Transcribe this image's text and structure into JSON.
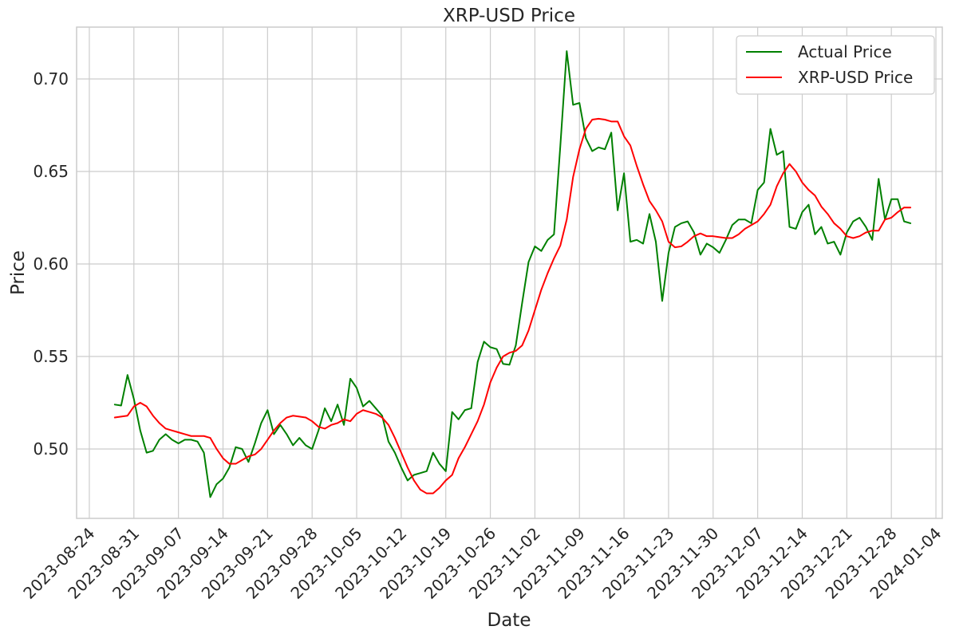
{
  "chart_data": {
    "type": "line",
    "title": "XRP-USD Price",
    "xlabel": "Date",
    "ylabel": "Price",
    "grid": true,
    "legend_position": "top-right",
    "x_start": "2023-08-22",
    "x_end": "2024-01-05",
    "ylim": [
      0.4625,
      0.728
    ],
    "x_ticks": [
      "2023-08-24",
      "2023-08-31",
      "2023-09-07",
      "2023-09-14",
      "2023-09-21",
      "2023-09-28",
      "2023-10-05",
      "2023-10-12",
      "2023-10-19",
      "2023-10-26",
      "2023-11-02",
      "2023-11-09",
      "2023-11-16",
      "2023-11-23",
      "2023-11-30",
      "2023-12-07",
      "2023-12-14",
      "2023-12-21",
      "2023-12-28",
      "2024-01-04"
    ],
    "y_ticks": [
      0.5,
      0.55,
      0.6,
      0.65,
      0.7
    ],
    "y_tick_labels": [
      "0.50",
      "0.55",
      "0.60",
      "0.65",
      "0.70"
    ],
    "series": [
      {
        "name": "Actual Price",
        "color": "#008000",
        "points": [
          [
            "2023-08-28",
            0.524
          ],
          [
            "2023-08-29",
            0.5235
          ],
          [
            "2023-08-30",
            0.54
          ],
          [
            "2023-08-31",
            0.527
          ],
          [
            "2023-09-01",
            0.51
          ],
          [
            "2023-09-02",
            0.498
          ],
          [
            "2023-09-03",
            0.499
          ],
          [
            "2023-09-04",
            0.505
          ],
          [
            "2023-09-05",
            0.508
          ],
          [
            "2023-09-06",
            0.505
          ],
          [
            "2023-09-07",
            0.503
          ],
          [
            "2023-09-08",
            0.505
          ],
          [
            "2023-09-09",
            0.505
          ],
          [
            "2023-09-10",
            0.504
          ],
          [
            "2023-09-11",
            0.498
          ],
          [
            "2023-09-12",
            0.474
          ],
          [
            "2023-09-13",
            0.481
          ],
          [
            "2023-09-14",
            0.484
          ],
          [
            "2023-09-15",
            0.49
          ],
          [
            "2023-09-16",
            0.501
          ],
          [
            "2023-09-17",
            0.5
          ],
          [
            "2023-09-18",
            0.493
          ],
          [
            "2023-09-19",
            0.503
          ],
          [
            "2023-09-20",
            0.514
          ],
          [
            "2023-09-21",
            0.521
          ],
          [
            "2023-09-22",
            0.508
          ],
          [
            "2023-09-23",
            0.513
          ],
          [
            "2023-09-24",
            0.508
          ],
          [
            "2023-09-25",
            0.502
          ],
          [
            "2023-09-26",
            0.506
          ],
          [
            "2023-09-27",
            0.502
          ],
          [
            "2023-09-28",
            0.5
          ],
          [
            "2023-09-29",
            0.51
          ],
          [
            "2023-09-30",
            0.522
          ],
          [
            "2023-10-01",
            0.515
          ],
          [
            "2023-10-02",
            0.524
          ],
          [
            "2023-10-03",
            0.513
          ],
          [
            "2023-10-04",
            0.538
          ],
          [
            "2023-10-05",
            0.533
          ],
          [
            "2023-10-06",
            0.523
          ],
          [
            "2023-10-07",
            0.526
          ],
          [
            "2023-10-08",
            0.522
          ],
          [
            "2023-10-09",
            0.518
          ],
          [
            "2023-10-10",
            0.504
          ],
          [
            "2023-10-11",
            0.498
          ],
          [
            "2023-10-12",
            0.49
          ],
          [
            "2023-10-13",
            0.483
          ],
          [
            "2023-10-14",
            0.486
          ],
          [
            "2023-10-15",
            0.487
          ],
          [
            "2023-10-16",
            0.488
          ],
          [
            "2023-10-17",
            0.498
          ],
          [
            "2023-10-18",
            0.492
          ],
          [
            "2023-10-19",
            0.488
          ],
          [
            "2023-10-20",
            0.52
          ],
          [
            "2023-10-21",
            0.516
          ],
          [
            "2023-10-22",
            0.521
          ],
          [
            "2023-10-23",
            0.522
          ],
          [
            "2023-10-24",
            0.547
          ],
          [
            "2023-10-25",
            0.558
          ],
          [
            "2023-10-26",
            0.555
          ],
          [
            "2023-10-27",
            0.554
          ],
          [
            "2023-10-28",
            0.546
          ],
          [
            "2023-10-29",
            0.5455
          ],
          [
            "2023-10-30",
            0.556
          ],
          [
            "2023-10-31",
            0.579
          ],
          [
            "2023-11-01",
            0.601
          ],
          [
            "2023-11-02",
            0.6095
          ],
          [
            "2023-11-03",
            0.607
          ],
          [
            "2023-11-04",
            0.613
          ],
          [
            "2023-11-05",
            0.616
          ],
          [
            "2023-11-06",
            0.664
          ],
          [
            "2023-11-07",
            0.715
          ],
          [
            "2023-11-08",
            0.686
          ],
          [
            "2023-11-09",
            0.687
          ],
          [
            "2023-11-10",
            0.668
          ],
          [
            "2023-11-11",
            0.661
          ],
          [
            "2023-11-12",
            0.663
          ],
          [
            "2023-11-13",
            0.662
          ],
          [
            "2023-11-14",
            0.671
          ],
          [
            "2023-11-15",
            0.629
          ],
          [
            "2023-11-16",
            0.649
          ],
          [
            "2023-11-17",
            0.612
          ],
          [
            "2023-11-18",
            0.613
          ],
          [
            "2023-11-19",
            0.611
          ],
          [
            "2023-11-20",
            0.627
          ],
          [
            "2023-11-21",
            0.612
          ],
          [
            "2023-11-22",
            0.58
          ],
          [
            "2023-11-23",
            0.606
          ],
          [
            "2023-11-24",
            0.62
          ],
          [
            "2023-11-25",
            0.622
          ],
          [
            "2023-11-26",
            0.623
          ],
          [
            "2023-11-27",
            0.617
          ],
          [
            "2023-11-28",
            0.605
          ],
          [
            "2023-11-29",
            0.611
          ],
          [
            "2023-11-30",
            0.609
          ],
          [
            "2023-12-01",
            0.606
          ],
          [
            "2023-12-02",
            0.613
          ],
          [
            "2023-12-03",
            0.621
          ],
          [
            "2023-12-04",
            0.624
          ],
          [
            "2023-12-05",
            0.624
          ],
          [
            "2023-12-06",
            0.622
          ],
          [
            "2023-12-07",
            0.64
          ],
          [
            "2023-12-08",
            0.644
          ],
          [
            "2023-12-09",
            0.673
          ],
          [
            "2023-12-10",
            0.659
          ],
          [
            "2023-12-11",
            0.661
          ],
          [
            "2023-12-12",
            0.62
          ],
          [
            "2023-12-13",
            0.619
          ],
          [
            "2023-12-14",
            0.628
          ],
          [
            "2023-12-15",
            0.632
          ],
          [
            "2023-12-16",
            0.616
          ],
          [
            "2023-12-17",
            0.62
          ],
          [
            "2023-12-18",
            0.611
          ],
          [
            "2023-12-19",
            0.612
          ],
          [
            "2023-12-20",
            0.605
          ],
          [
            "2023-12-21",
            0.617
          ],
          [
            "2023-12-22",
            0.623
          ],
          [
            "2023-12-23",
            0.625
          ],
          [
            "2023-12-24",
            0.62
          ],
          [
            "2023-12-25",
            0.613
          ],
          [
            "2023-12-26",
            0.646
          ],
          [
            "2023-12-27",
            0.624
          ],
          [
            "2023-12-28",
            0.635
          ],
          [
            "2023-12-29",
            0.635
          ],
          [
            "2023-12-30",
            0.623
          ],
          [
            "2023-12-31",
            0.622
          ]
        ]
      },
      {
        "name": "XRP-USD Price",
        "color": "#ff0000",
        "points": [
          [
            "2023-08-28",
            0.517
          ],
          [
            "2023-08-29",
            0.5175
          ],
          [
            "2023-08-30",
            0.518
          ],
          [
            "2023-08-31",
            0.523
          ],
          [
            "2023-09-01",
            0.525
          ],
          [
            "2023-09-02",
            0.523
          ],
          [
            "2023-09-03",
            0.518
          ],
          [
            "2023-09-04",
            0.514
          ],
          [
            "2023-09-05",
            0.511
          ],
          [
            "2023-09-06",
            0.51
          ],
          [
            "2023-09-07",
            0.509
          ],
          [
            "2023-09-08",
            0.508
          ],
          [
            "2023-09-09",
            0.507
          ],
          [
            "2023-09-10",
            0.507
          ],
          [
            "2023-09-11",
            0.507
          ],
          [
            "2023-09-12",
            0.506
          ],
          [
            "2023-09-13",
            0.5
          ],
          [
            "2023-09-14",
            0.495
          ],
          [
            "2023-09-15",
            0.492
          ],
          [
            "2023-09-16",
            0.492
          ],
          [
            "2023-09-17",
            0.494
          ],
          [
            "2023-09-18",
            0.496
          ],
          [
            "2023-09-19",
            0.497
          ],
          [
            "2023-09-20",
            0.5
          ],
          [
            "2023-09-21",
            0.505
          ],
          [
            "2023-09-22",
            0.51
          ],
          [
            "2023-09-23",
            0.514
          ],
          [
            "2023-09-24",
            0.517
          ],
          [
            "2023-09-25",
            0.518
          ],
          [
            "2023-09-26",
            0.5175
          ],
          [
            "2023-09-27",
            0.517
          ],
          [
            "2023-09-28",
            0.515
          ],
          [
            "2023-09-29",
            0.512
          ],
          [
            "2023-09-30",
            0.511
          ],
          [
            "2023-10-01",
            0.513
          ],
          [
            "2023-10-02",
            0.514
          ],
          [
            "2023-10-03",
            0.516
          ],
          [
            "2023-10-04",
            0.515
          ],
          [
            "2023-10-05",
            0.519
          ],
          [
            "2023-10-06",
            0.521
          ],
          [
            "2023-10-07",
            0.52
          ],
          [
            "2023-10-08",
            0.519
          ],
          [
            "2023-10-09",
            0.517
          ],
          [
            "2023-10-10",
            0.513
          ],
          [
            "2023-10-11",
            0.506
          ],
          [
            "2023-10-12",
            0.498
          ],
          [
            "2023-10-13",
            0.49
          ],
          [
            "2023-10-14",
            0.483
          ],
          [
            "2023-10-15",
            0.478
          ],
          [
            "2023-10-16",
            0.476
          ],
          [
            "2023-10-17",
            0.476
          ],
          [
            "2023-10-18",
            0.479
          ],
          [
            "2023-10-19",
            0.483
          ],
          [
            "2023-10-20",
            0.486
          ],
          [
            "2023-10-21",
            0.495
          ],
          [
            "2023-10-22",
            0.501
          ],
          [
            "2023-10-23",
            0.508
          ],
          [
            "2023-10-24",
            0.515
          ],
          [
            "2023-10-25",
            0.524
          ],
          [
            "2023-10-26",
            0.536
          ],
          [
            "2023-10-27",
            0.544
          ],
          [
            "2023-10-28",
            0.55
          ],
          [
            "2023-10-29",
            0.552
          ],
          [
            "2023-10-30",
            0.553
          ],
          [
            "2023-10-31",
            0.556
          ],
          [
            "2023-11-01",
            0.564
          ],
          [
            "2023-11-02",
            0.575
          ],
          [
            "2023-11-03",
            0.586
          ],
          [
            "2023-11-04",
            0.595
          ],
          [
            "2023-11-05",
            0.603
          ],
          [
            "2023-11-06",
            0.61
          ],
          [
            "2023-11-07",
            0.624
          ],
          [
            "2023-11-08",
            0.647
          ],
          [
            "2023-11-09",
            0.662
          ],
          [
            "2023-11-10",
            0.673
          ],
          [
            "2023-11-11",
            0.678
          ],
          [
            "2023-11-12",
            0.6785
          ],
          [
            "2023-11-13",
            0.678
          ],
          [
            "2023-11-14",
            0.677
          ],
          [
            "2023-11-15",
            0.677
          ],
          [
            "2023-11-16",
            0.669
          ],
          [
            "2023-11-17",
            0.664
          ],
          [
            "2023-11-18",
            0.653
          ],
          [
            "2023-11-19",
            0.643
          ],
          [
            "2023-11-20",
            0.634
          ],
          [
            "2023-11-21",
            0.629
          ],
          [
            "2023-11-22",
            0.623
          ],
          [
            "2023-11-23",
            0.612
          ],
          [
            "2023-11-24",
            0.609
          ],
          [
            "2023-11-25",
            0.6095
          ],
          [
            "2023-11-26",
            0.612
          ],
          [
            "2023-11-27",
            0.615
          ],
          [
            "2023-11-28",
            0.6165
          ],
          [
            "2023-11-29",
            0.615
          ],
          [
            "2023-11-30",
            0.615
          ],
          [
            "2023-12-01",
            0.6145
          ],
          [
            "2023-12-02",
            0.614
          ],
          [
            "2023-12-03",
            0.614
          ],
          [
            "2023-12-04",
            0.616
          ],
          [
            "2023-12-05",
            0.619
          ],
          [
            "2023-12-06",
            0.621
          ],
          [
            "2023-12-07",
            0.623
          ],
          [
            "2023-12-08",
            0.627
          ],
          [
            "2023-12-09",
            0.632
          ],
          [
            "2023-12-10",
            0.642
          ],
          [
            "2023-12-11",
            0.649
          ],
          [
            "2023-12-12",
            0.654
          ],
          [
            "2023-12-13",
            0.65
          ],
          [
            "2023-12-14",
            0.644
          ],
          [
            "2023-12-15",
            0.64
          ],
          [
            "2023-12-16",
            0.637
          ],
          [
            "2023-12-17",
            0.631
          ],
          [
            "2023-12-18",
            0.627
          ],
          [
            "2023-12-19",
            0.622
          ],
          [
            "2023-12-20",
            0.619
          ],
          [
            "2023-12-21",
            0.615
          ],
          [
            "2023-12-22",
            0.614
          ],
          [
            "2023-12-23",
            0.615
          ],
          [
            "2023-12-24",
            0.617
          ],
          [
            "2023-12-25",
            0.618
          ],
          [
            "2023-12-26",
            0.618
          ],
          [
            "2023-12-27",
            0.624
          ],
          [
            "2023-12-28",
            0.625
          ],
          [
            "2023-12-29",
            0.628
          ],
          [
            "2023-12-30",
            0.6305
          ],
          [
            "2023-12-31",
            0.6305
          ]
        ]
      }
    ]
  }
}
